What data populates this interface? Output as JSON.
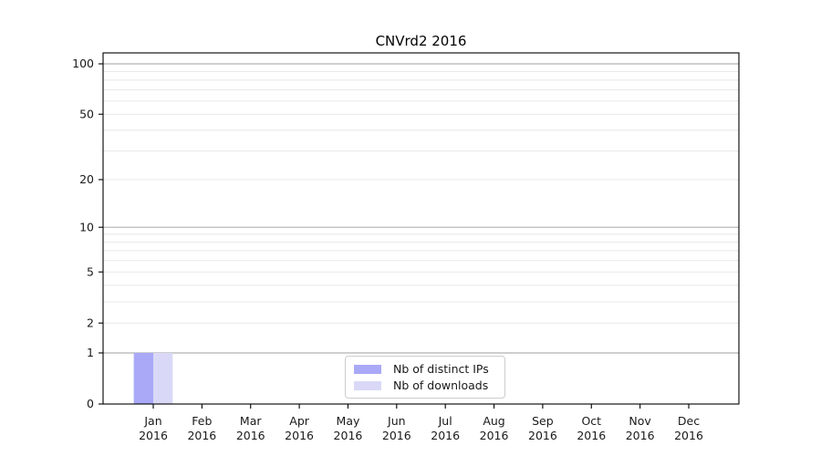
{
  "title": "CNVrd2 2016",
  "colors": {
    "distinct_ips": "#a9a9f8",
    "downloads": "#d9d9f7",
    "major_grid": "#b0b0b0",
    "minor_grid": "#e8e8e8",
    "axis": "#000000"
  },
  "legend": {
    "items": [
      {
        "label": "Nb of distinct IPs",
        "color": "#a9a9f8"
      },
      {
        "label": "Nb of downloads",
        "color": "#d9d9f7"
      }
    ]
  },
  "chart_data": {
    "type": "bar",
    "title": "CNVrd2 2016",
    "categories": [
      "Jan 2016",
      "Feb 2016",
      "Mar 2016",
      "Apr 2016",
      "May 2016",
      "Jun 2016",
      "Jul 2016",
      "Aug 2016",
      "Sep 2016",
      "Oct 2016",
      "Nov 2016",
      "Dec 2016"
    ],
    "series": [
      {
        "name": "Nb of distinct IPs",
        "color": "#a9a9f8",
        "values": [
          1,
          0,
          0,
          0,
          0,
          0,
          0,
          0,
          0,
          0,
          0,
          0
        ]
      },
      {
        "name": "Nb of downloads",
        "color": "#d9d9f7",
        "values": [
          1,
          0,
          0,
          0,
          0,
          0,
          0,
          0,
          0,
          0,
          0,
          0
        ]
      }
    ],
    "xlabel": "",
    "ylabel": "",
    "yscale": "log1p",
    "ylim": [
      0,
      116
    ],
    "ytick_labels": [
      "0",
      "1",
      "2",
      "5",
      "10",
      "20",
      "50",
      "100"
    ],
    "ytick_values": [
      0,
      1,
      2,
      5,
      10,
      20,
      50,
      100
    ],
    "major_grid_values": [
      1,
      10,
      100
    ],
    "minor_grid_values": [
      2,
      3,
      4,
      5,
      6,
      7,
      8,
      9,
      20,
      30,
      40,
      50,
      60,
      70,
      80,
      90
    ],
    "grid": true,
    "legend_position": "lower center"
  }
}
